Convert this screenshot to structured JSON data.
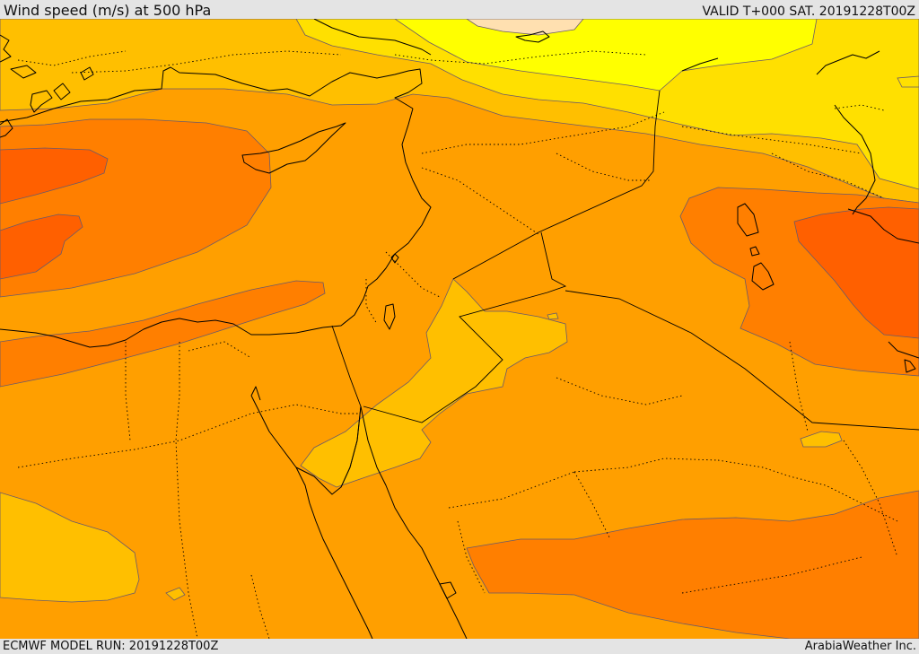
{
  "header": {
    "title": "Wind speed (m/s) at 500 hPa",
    "valid": "VALID T+000 SAT. 20191228T00Z"
  },
  "footer": {
    "model_run": "ECMWF MODEL RUN: 20191228T00Z",
    "credit": "ArabiaWeather Inc."
  },
  "colors": {
    "background": "#e4e4e4",
    "band_lightest": "#ffe0b0",
    "band_yellow": "#ffff00",
    "band_light_gold": "#ffe000",
    "band_gold": "#ffbf00",
    "band_orange": "#ff9f00",
    "band_dark_orange": "#ff7f00",
    "band_red_orange": "#ff6000"
  }
}
